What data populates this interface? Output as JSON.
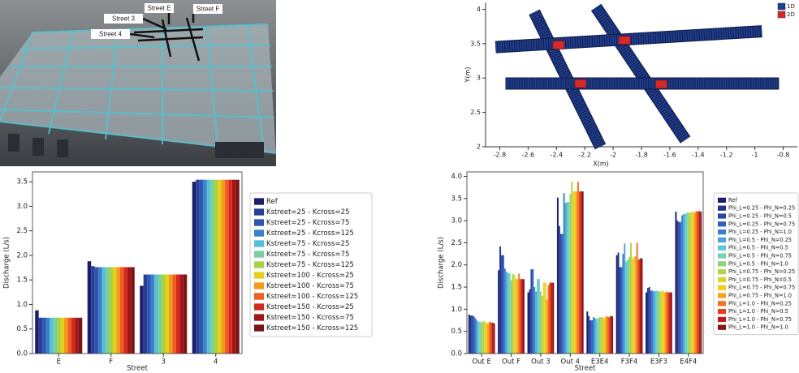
{
  "photo": {
    "labels": [
      "Street E",
      "Street F",
      "Street 3",
      "Street 4"
    ]
  },
  "chart_data": [
    {
      "type": "mesh",
      "xlabel": "X(m)",
      "ylabel": "Y(m)",
      "xlim": [
        -2.9,
        -0.7
      ],
      "ylim": [
        2,
        4.1
      ],
      "xticks": [
        -2.8,
        -2.6,
        -2.4,
        -2.2,
        -2,
        -1.8,
        -1.6,
        -1.4,
        -1.2,
        -1,
        -0.8
      ],
      "yticks": [
        2,
        2.5,
        3,
        3.5,
        4
      ],
      "legend": "upper right",
      "series": [
        {
          "name": "1D",
          "color": "#22408f",
          "streets": [
            {
              "x": [
                -2.556,
                -2.09
              ],
              "y": [
                3.96,
                2.0
              ]
            },
            {
              "x": [
                -2.12,
                -1.49
              ],
              "y": [
                4.03,
                2.1
              ]
            },
            {
              "x": [
                -2.83,
                -0.95
              ],
              "y": [
                3.45,
                3.68
              ]
            },
            {
              "x": [
                -2.76,
                -0.83
              ],
              "y": [
                2.92,
                2.92
              ]
            }
          ]
        },
        {
          "name": "2D",
          "color": "#d42a2a",
          "x": [
            -2.385,
            -1.92,
            -2.23,
            -1.66
          ],
          "y": [
            3.48,
            3.55,
            2.92,
            2.91
          ]
        }
      ]
    },
    {
      "type": "bar",
      "xlabel": "Street",
      "ylabel": "Discharge (L/s)",
      "categories": [
        "E",
        "F",
        "3",
        "4"
      ],
      "ylim": [
        0,
        3.7
      ],
      "yticks": [
        {
          "value": 0,
          "label": "0.0"
        },
        {
          "value": 0.5,
          "label": "0.5"
        },
        {
          "value": 1,
          "label": "1.0"
        },
        {
          "value": 1.5,
          "label": "1.5"
        },
        {
          "value": 2,
          "label": "2.0"
        },
        {
          "value": 2.5,
          "label": "2.5"
        },
        {
          "value": 3,
          "label": "3.0"
        },
        {
          "value": 3.5,
          "label": "3.5"
        }
      ],
      "legend": "right",
      "series": [
        {
          "name": "Ref",
          "color": "#1a1f6b",
          "values": [
            0.88,
            1.88,
            1.38,
            3.5
          ]
        },
        {
          "name": "Kstreet=25 - Kcross=25",
          "color": "#283e96",
          "values": [
            0.73,
            1.78,
            1.61,
            3.54
          ]
        },
        {
          "name": "Kstreet=25 - Kcross=75",
          "color": "#2f55b0",
          "values": [
            0.73,
            1.76,
            1.61,
            3.54
          ]
        },
        {
          "name": "Kstreet=25 - Kcross=125",
          "color": "#3d80c8",
          "values": [
            0.73,
            1.76,
            1.61,
            3.54
          ]
        },
        {
          "name": "Kstreet=75 - Kcross=25",
          "color": "#56c0d8",
          "values": [
            0.73,
            1.76,
            1.61,
            3.54
          ]
        },
        {
          "name": "Kstreet=75 - Kcross=75",
          "color": "#79cf9e",
          "values": [
            0.73,
            1.76,
            1.61,
            3.54
          ]
        },
        {
          "name": "Kstreet=75 - Kcross=125",
          "color": "#a8d146",
          "values": [
            0.73,
            1.76,
            1.61,
            3.54
          ]
        },
        {
          "name": "Kstreet=100 - Kcross=25",
          "color": "#e5d01c",
          "values": [
            0.73,
            1.76,
            1.61,
            3.54
          ]
        },
        {
          "name": "Kstreet=100 - Kcross=75",
          "color": "#f39a1e",
          "values": [
            0.73,
            1.76,
            1.61,
            3.54
          ]
        },
        {
          "name": "Kstreet=100 - Kcross=125",
          "color": "#ee5d22",
          "values": [
            0.73,
            1.76,
            1.61,
            3.54
          ]
        },
        {
          "name": "Kstreet=150 - Kcross=25",
          "color": "#d8281e",
          "values": [
            0.73,
            1.76,
            1.61,
            3.54
          ]
        },
        {
          "name": "Kstreet=150 - Kcross=75",
          "color": "#a01618",
          "values": [
            0.73,
            1.76,
            1.61,
            3.54
          ]
        },
        {
          "name": "Kstreet=150 - Kcross=125",
          "color": "#7a1414",
          "values": [
            0.73,
            1.76,
            1.61,
            3.54
          ]
        }
      ]
    },
    {
      "type": "bar",
      "xlabel": "Street",
      "ylabel": "Discharge (L/s)",
      "categories": [
        "Out E",
        "Out F",
        "Out 3",
        "Out 4",
        "E3E4",
        "F3F4",
        "E3F3",
        "E4F4"
      ],
      "ylim": [
        0,
        4.1
      ],
      "yticks": [
        {
          "value": 0,
          "label": "0.0"
        },
        {
          "value": 0.5,
          "label": "0.5"
        },
        {
          "value": 1,
          "label": "1.0"
        },
        {
          "value": 1.5,
          "label": "1.5"
        },
        {
          "value": 2,
          "label": "2.0"
        },
        {
          "value": 2.5,
          "label": "2.5"
        },
        {
          "value": 3,
          "label": "3.0"
        },
        {
          "value": 3.5,
          "label": "3.5"
        },
        {
          "value": 4,
          "label": "4.0"
        }
      ],
      "legend": "right",
      "series": [
        {
          "name": "Ref",
          "color": "#1a1f6b",
          "values": [
            0.88,
            1.88,
            1.38,
            3.52,
            0.95,
            2.22,
            1.38,
            3.2
          ]
        },
        {
          "name": "Phi_L=0.25 - Phi_N=0.25",
          "color": "#26338c",
          "values": [
            0.86,
            2.42,
            1.45,
            2.88,
            0.85,
            2.28,
            1.48,
            3.0
          ]
        },
        {
          "name": "Phi_L=0.25 - Phi_N=0.5",
          "color": "#2c46a4",
          "values": [
            0.86,
            2.22,
            1.9,
            2.7,
            0.75,
            1.95,
            1.5,
            2.97
          ]
        },
        {
          "name": "Phi_L=0.25 - Phi_N=0.75",
          "color": "#3160bd",
          "values": [
            0.84,
            2.22,
            1.9,
            2.7,
            0.75,
            1.95,
            1.42,
            2.97
          ]
        },
        {
          "name": "Phi_L=0.25 - Phi_N=1.0",
          "color": "#3a7fcc",
          "values": [
            0.8,
            1.92,
            1.5,
            3.62,
            0.82,
            2.25,
            1.42,
            3.12
          ]
        },
        {
          "name": "Phi_L=0.5 - Phi_N=0.25",
          "color": "#4aa6d8",
          "values": [
            0.75,
            1.85,
            1.4,
            3.4,
            0.8,
            2.48,
            1.4,
            3.15
          ]
        },
        {
          "name": "Phi_L=0.5 - Phi_N=0.5",
          "color": "#5ec8d6",
          "values": [
            0.72,
            1.82,
            1.68,
            3.42,
            0.78,
            2.08,
            1.42,
            3.15
          ]
        },
        {
          "name": "Phi_L=0.5 - Phi_N=0.75",
          "color": "#76d3ad",
          "values": [
            0.72,
            1.82,
            1.68,
            3.42,
            0.8,
            2.12,
            1.42,
            3.18
          ]
        },
        {
          "name": "Phi_L=0.5 - Phi_N=1.0",
          "color": "#93d27a",
          "values": [
            0.7,
            1.65,
            1.4,
            3.6,
            0.82,
            2.18,
            1.4,
            3.18
          ]
        },
        {
          "name": "Phi_L=0.75 - Phi_N=0.25",
          "color": "#b5d448",
          "values": [
            0.74,
            1.8,
            1.3,
            3.88,
            0.82,
            2.5,
            1.4,
            3.18
          ]
        },
        {
          "name": "Phi_L=0.75 - Phi_N=0.5",
          "color": "#dcd52a",
          "values": [
            0.72,
            1.78,
            1.6,
            3.66,
            0.82,
            2.15,
            1.42,
            3.2
          ]
        },
        {
          "name": "Phi_L=0.75 - Phi_N=0.75",
          "color": "#f6cc1c",
          "values": [
            0.7,
            1.68,
            1.6,
            3.66,
            0.8,
            2.18,
            1.4,
            3.2
          ]
        },
        {
          "name": "Phi_L=0.75 - Phi_N=1.0",
          "color": "#f7a21d",
          "values": [
            0.68,
            1.68,
            1.22,
            3.66,
            0.85,
            2.2,
            1.38,
            3.18
          ]
        },
        {
          "name": "Phi_L=1.0 - Phi_N=0.25",
          "color": "#f2721f",
          "values": [
            0.72,
            1.8,
            1.55,
            3.88,
            0.83,
            2.5,
            1.4,
            3.22
          ]
        },
        {
          "name": "Phi_L=1.0 - Phi_N=0.5",
          "color": "#e43f1e",
          "values": [
            0.7,
            1.68,
            1.6,
            3.66,
            0.82,
            2.12,
            1.38,
            3.2
          ]
        },
        {
          "name": "Phi_L=1.0 - Phi_N=0.75",
          "color": "#bd1e1a",
          "values": [
            0.7,
            1.68,
            1.6,
            3.66,
            0.85,
            2.15,
            1.38,
            3.22
          ]
        },
        {
          "name": "Phi_L=1.0 - Phi_N=1.0",
          "color": "#8a1414",
          "values": [
            0.68,
            1.68,
            1.6,
            3.66,
            0.84,
            2.15,
            1.38,
            3.2
          ]
        }
      ]
    }
  ]
}
